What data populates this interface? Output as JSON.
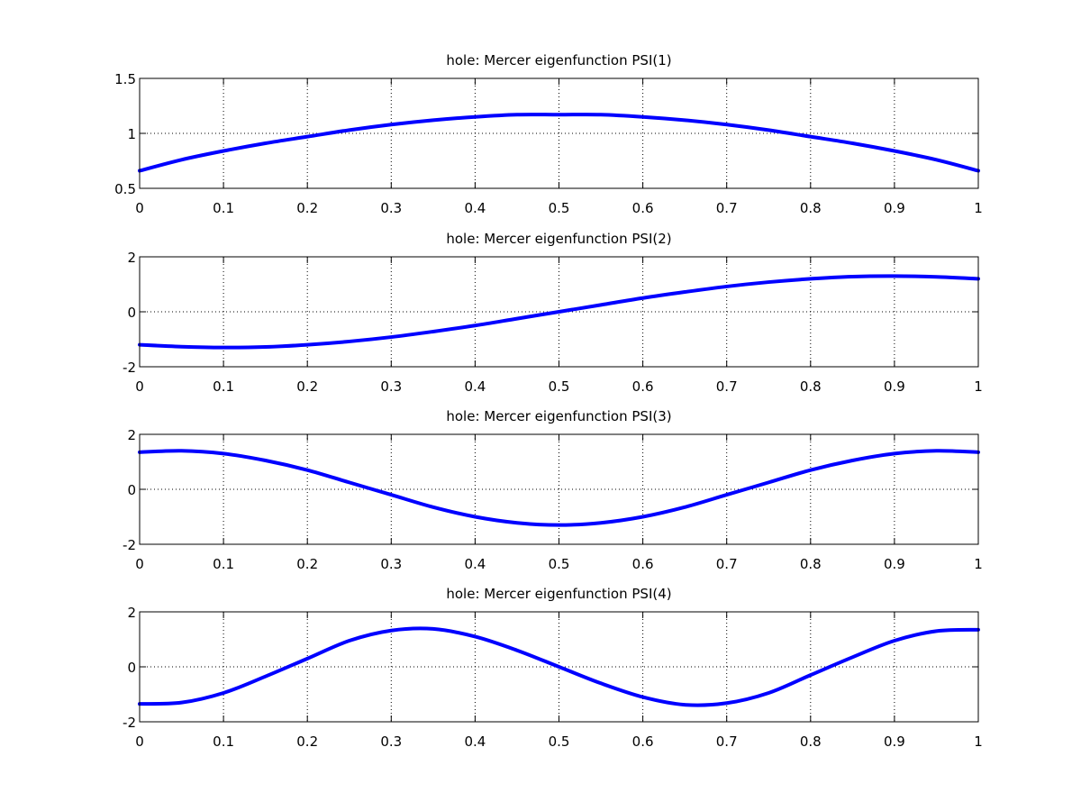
{
  "colors": {
    "series": "#0000ff",
    "axes": "#000000",
    "background": "#ffffff"
  },
  "chart_data": [
    {
      "type": "line",
      "title": "hole: Mercer eigenfunction PSI(1)",
      "xlim": [
        0,
        1
      ],
      "ylim": [
        0.5,
        1.5
      ],
      "xticks": [
        0,
        0.1,
        0.2,
        0.3,
        0.4,
        0.5,
        0.6,
        0.7,
        0.8,
        0.9,
        1
      ],
      "xtick_labels": [
        "0",
        "0.1",
        "0.2",
        "0.3",
        "0.4",
        "0.5",
        "0.6",
        "0.7",
        "0.8",
        "0.9",
        "1"
      ],
      "yticks": [
        0.5,
        1,
        1.5
      ],
      "ytick_labels": [
        "0.5",
        "1",
        "1.5"
      ],
      "grid": true,
      "series": [
        {
          "x": [
            0,
            0.05,
            0.1,
            0.15,
            0.2,
            0.25,
            0.3,
            0.35,
            0.4,
            0.45,
            0.5,
            0.55,
            0.6,
            0.65,
            0.7,
            0.75,
            0.8,
            0.85,
            0.9,
            0.95,
            1
          ],
          "y": [
            0.66,
            0.76,
            0.84,
            0.91,
            0.97,
            1.03,
            1.08,
            1.12,
            1.15,
            1.17,
            1.17,
            1.17,
            1.15,
            1.12,
            1.08,
            1.03,
            0.97,
            0.91,
            0.84,
            0.76,
            0.66
          ]
        }
      ]
    },
    {
      "type": "line",
      "title": "hole: Mercer eigenfunction PSI(2)",
      "xlim": [
        0,
        1
      ],
      "ylim": [
        -2,
        2
      ],
      "xticks": [
        0,
        0.1,
        0.2,
        0.3,
        0.4,
        0.5,
        0.6,
        0.7,
        0.8,
        0.9,
        1
      ],
      "xtick_labels": [
        "0",
        "0.1",
        "0.2",
        "0.3",
        "0.4",
        "0.5",
        "0.6",
        "0.7",
        "0.8",
        "0.9",
        "1"
      ],
      "yticks": [
        -2,
        0,
        2
      ],
      "ytick_labels": [
        "-2",
        "0",
        "2"
      ],
      "grid": true,
      "series": [
        {
          "x": [
            0,
            0.05,
            0.1,
            0.15,
            0.2,
            0.25,
            0.3,
            0.35,
            0.4,
            0.45,
            0.5,
            0.55,
            0.6,
            0.65,
            0.7,
            0.75,
            0.8,
            0.85,
            0.9,
            0.95,
            1
          ],
          "y": [
            -1.2,
            -1.27,
            -1.3,
            -1.28,
            -1.2,
            -1.08,
            -0.92,
            -0.72,
            -0.5,
            -0.25,
            0,
            0.25,
            0.5,
            0.72,
            0.92,
            1.08,
            1.2,
            1.28,
            1.3,
            1.27,
            1.2
          ]
        }
      ]
    },
    {
      "type": "line",
      "title": "hole: Mercer eigenfunction PSI(3)",
      "xlim": [
        0,
        1
      ],
      "ylim": [
        -2,
        2
      ],
      "xticks": [
        0,
        0.1,
        0.2,
        0.3,
        0.4,
        0.5,
        0.6,
        0.7,
        0.8,
        0.9,
        1
      ],
      "xtick_labels": [
        "0",
        "0.1",
        "0.2",
        "0.3",
        "0.4",
        "0.5",
        "0.6",
        "0.7",
        "0.8",
        "0.9",
        "1"
      ],
      "yticks": [
        -2,
        0,
        2
      ],
      "ytick_labels": [
        "-2",
        "0",
        "2"
      ],
      "grid": true,
      "series": [
        {
          "x": [
            0,
            0.05,
            0.1,
            0.15,
            0.2,
            0.25,
            0.3,
            0.35,
            0.4,
            0.45,
            0.5,
            0.55,
            0.6,
            0.65,
            0.7,
            0.75,
            0.8,
            0.85,
            0.9,
            0.95,
            1
          ],
          "y": [
            1.35,
            1.4,
            1.3,
            1.05,
            0.7,
            0.25,
            -0.2,
            -0.65,
            -1.0,
            -1.22,
            -1.3,
            -1.22,
            -1.0,
            -0.65,
            -0.2,
            0.25,
            0.7,
            1.05,
            1.3,
            1.4,
            1.35
          ]
        }
      ]
    },
    {
      "type": "line",
      "title": "hole: Mercer eigenfunction PSI(4)",
      "xlim": [
        0,
        1
      ],
      "ylim": [
        -2,
        2
      ],
      "xticks": [
        0,
        0.1,
        0.2,
        0.3,
        0.4,
        0.5,
        0.6,
        0.7,
        0.8,
        0.9,
        1
      ],
      "xtick_labels": [
        "0",
        "0.1",
        "0.2",
        "0.3",
        "0.4",
        "0.5",
        "0.6",
        "0.7",
        "0.8",
        "0.9",
        "1"
      ],
      "yticks": [
        -2,
        0,
        2
      ],
      "ytick_labels": [
        "-2",
        "0",
        "2"
      ],
      "grid": true,
      "series": [
        {
          "x": [
            0,
            0.05,
            0.1,
            0.15,
            0.2,
            0.25,
            0.3,
            0.35,
            0.4,
            0.45,
            0.5,
            0.55,
            0.6,
            0.65,
            0.7,
            0.75,
            0.8,
            0.85,
            0.9,
            0.95,
            1
          ],
          "y": [
            -1.35,
            -1.3,
            -0.95,
            -0.35,
            0.3,
            0.95,
            1.32,
            1.38,
            1.1,
            0.6,
            0,
            -0.6,
            -1.1,
            -1.38,
            -1.32,
            -0.95,
            -0.3,
            0.35,
            0.95,
            1.3,
            1.35
          ]
        }
      ]
    }
  ]
}
